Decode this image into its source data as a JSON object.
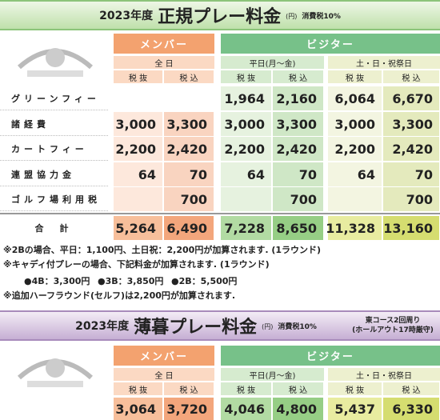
{
  "regular": {
    "year": "2023年度",
    "title": "正規プレー料金",
    "unit": "(円)",
    "tax": "消費税10%",
    "groups": [
      "メンバー",
      "ビジター"
    ],
    "periods": [
      "全 日",
      "平日(月～金)",
      "土・日・祝祭日"
    ],
    "tax_labels": [
      "税 抜",
      "税 込"
    ],
    "rows": [
      {
        "label": "グリーンフィー",
        "cells": [
          null,
          null,
          "1,964",
          "2,160",
          "6,064",
          "6,670"
        ]
      },
      {
        "label": "諸経費",
        "cells": [
          "3,000",
          "3,300",
          "3,000",
          "3,300",
          "3,000",
          "3,300"
        ]
      },
      {
        "label": "カートフィー",
        "cells": [
          "2,200",
          "2,420",
          "2,200",
          "2,420",
          "2,200",
          "2,420"
        ]
      },
      {
        "label": "連盟協力金",
        "cells": [
          "64",
          "70",
          "64",
          "70",
          "64",
          "70"
        ]
      },
      {
        "label": "ゴルフ場利用税",
        "cells": [
          null,
          "700",
          null,
          "700",
          null,
          "700"
        ]
      }
    ],
    "total": {
      "label": "合計",
      "cells": [
        "5,264",
        "6,490",
        "7,228",
        "8,650",
        "11,328",
        "13,160"
      ]
    }
  },
  "notes": [
    "※2Bの場合、平日：1,100円、土日祝：2,200円が加算されます. (1ラウンド)",
    "※キャディ付プレーの場合、下記料金が加算されます. (1ラウンド)",
    [
      "●4B：3,300円",
      "●3B：3,850円",
      "●2B：5,500円"
    ],
    "※追加ハーフラウンド(セルフ)は2,200円が加算されます."
  ],
  "twilight": {
    "year": "2023年度",
    "title": "薄暮プレー料金",
    "unit": "(円)",
    "tax": "消費税10%",
    "course": "東コース2回周り",
    "condition": "(ホールアウト17時厳守)",
    "groups": [
      "メンバー",
      "ビジター"
    ],
    "periods": [
      "全 日",
      "平日(月～金)",
      "土・日・祝祭日"
    ],
    "tax_labels": [
      "税 抜",
      "税 込"
    ],
    "cells": [
      "3,064",
      "3,720",
      "4,046",
      "4,800",
      "5,437",
      "6,330"
    ]
  }
}
